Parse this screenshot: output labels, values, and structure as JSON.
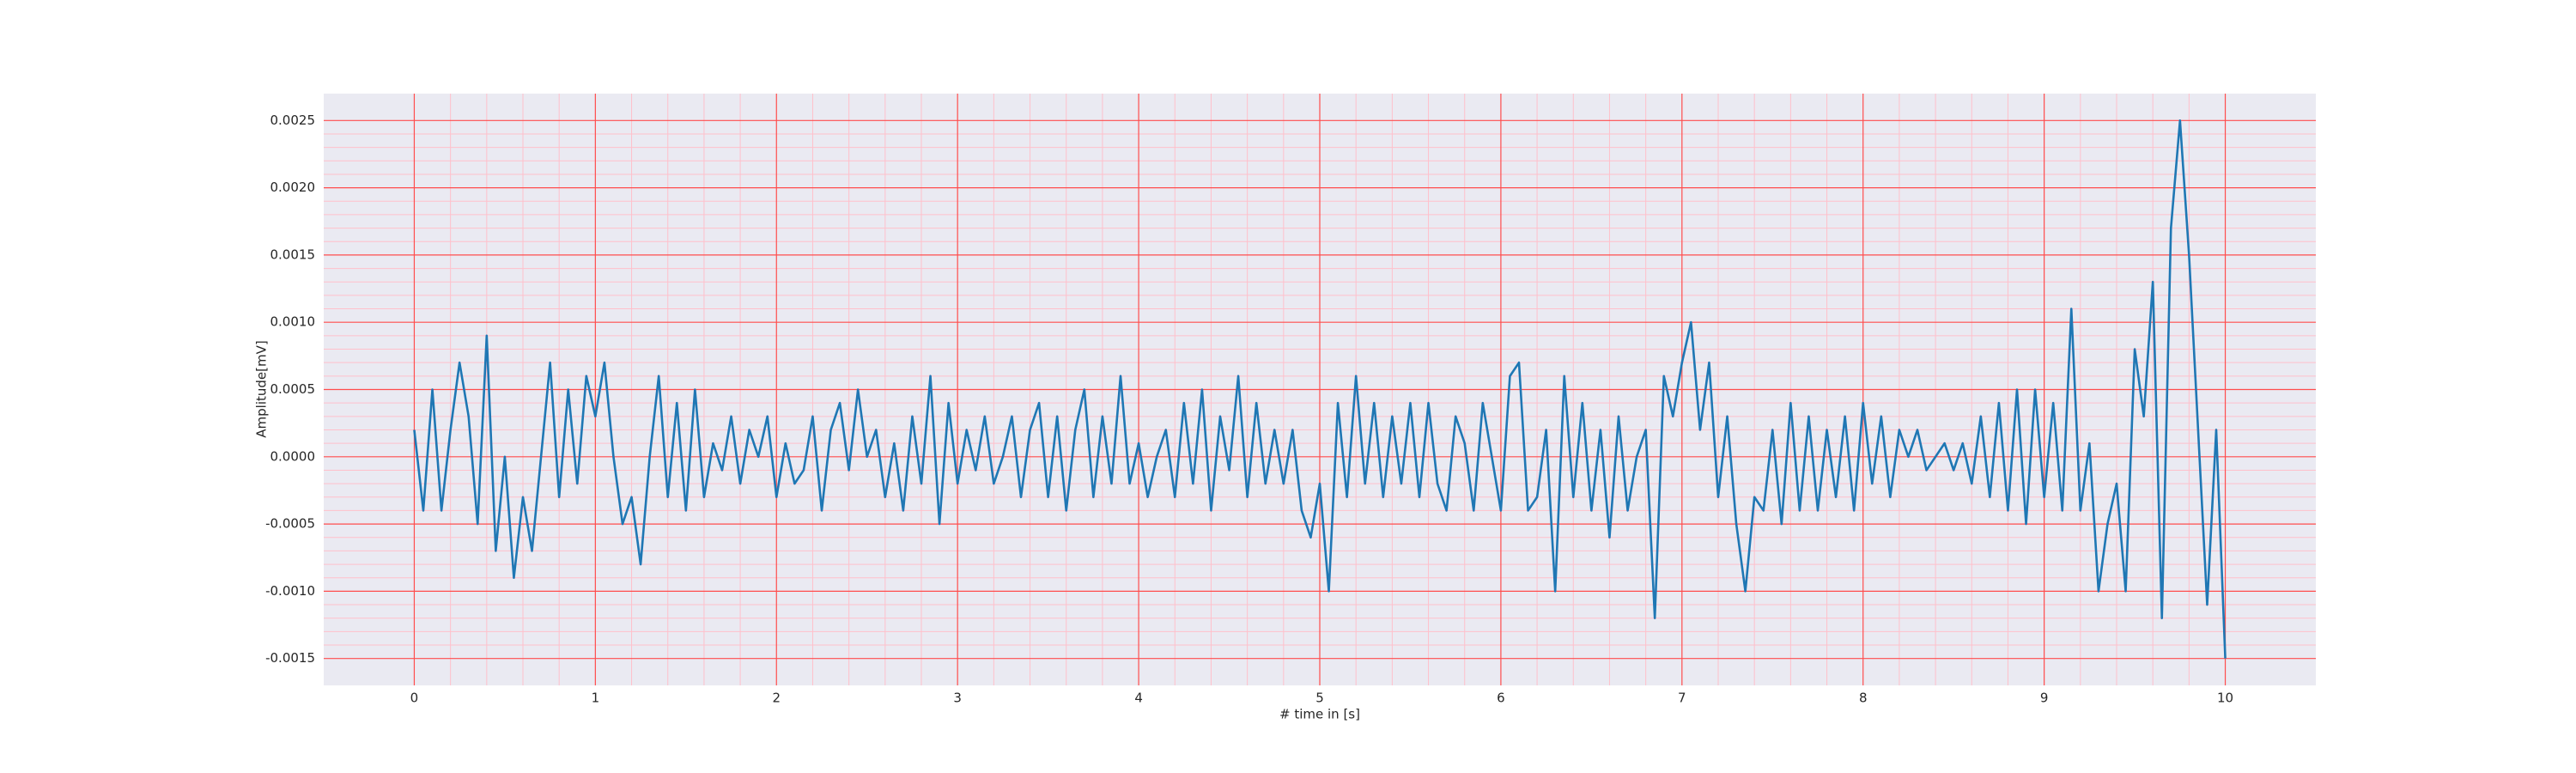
{
  "chart_data": {
    "type": "line",
    "xlabel": "# time in [s]",
    "ylabel": "Amplitude[mV]",
    "color": "#1f77b4",
    "grid": true,
    "major_grid_color": "#ff4d4d",
    "minor_grid_color": "#ffc0cb",
    "background": "#eaeaf2",
    "xlim": [
      -0.5,
      10.5
    ],
    "ylim": [
      -0.0017,
      0.0027
    ],
    "xticks": [
      0,
      1,
      2,
      3,
      4,
      5,
      6,
      7,
      8,
      9,
      10
    ],
    "yticks": [
      -0.0015,
      {
        "value": -0.001,
        "label": "-0.0010"
      },
      -0.0005,
      {
        "value": 0,
        "label": "0.0000"
      },
      0.0005,
      {
        "value": 0.001,
        "label": "0.0010"
      },
      0.0015,
      {
        "value": 0.002,
        "label": "0.0020"
      },
      0.0025
    ],
    "x": [
      0,
      0.05,
      0.1,
      0.15,
      0.2,
      0.25,
      0.3,
      0.35,
      0.4,
      0.45,
      0.5,
      0.55,
      0.6,
      0.65,
      0.7,
      0.75,
      0.8,
      0.85,
      0.9,
      0.95,
      1,
      1.05,
      1.1,
      1.15,
      1.2,
      1.25,
      1.3,
      1.35,
      1.4,
      1.45,
      1.5,
      1.55,
      1.6,
      1.65,
      1.7,
      1.75,
      1.8,
      1.85,
      1.9,
      1.95,
      2,
      2.05,
      2.1,
      2.15,
      2.2,
      2.25,
      2.3,
      2.35,
      2.4,
      2.45,
      2.5,
      2.55,
      2.6,
      2.65,
      2.7,
      2.75,
      2.8,
      2.85,
      2.9,
      2.95,
      3,
      3.05,
      3.1,
      3.15,
      3.2,
      3.25,
      3.3,
      3.35,
      3.4,
      3.45,
      3.5,
      3.55,
      3.6,
      3.65,
      3.7,
      3.75,
      3.8,
      3.85,
      3.9,
      3.95,
      4,
      4.05,
      4.1,
      4.15,
      4.2,
      4.25,
      4.3,
      4.35,
      4.4,
      4.45,
      4.5,
      4.55,
      4.6,
      4.65,
      4.7,
      4.75,
      4.8,
      4.85,
      4.9,
      4.95,
      5,
      5.05,
      5.1,
      5.15,
      5.2,
      5.25,
      5.3,
      5.35,
      5.4,
      5.45,
      5.5,
      5.55,
      5.6,
      5.65,
      5.7,
      5.75,
      5.8,
      5.85,
      5.9,
      5.95,
      6,
      6.05,
      6.1,
      6.15,
      6.2,
      6.25,
      6.3,
      6.35,
      6.4,
      6.45,
      6.5,
      6.55,
      6.6,
      6.65,
      6.7,
      6.75,
      6.8,
      6.85,
      6.9,
      6.95,
      7,
      7.05,
      7.1,
      7.15,
      7.2,
      7.25,
      7.3,
      7.35,
      7.4,
      7.45,
      7.5,
      7.55,
      7.6,
      7.65,
      7.7,
      7.75,
      7.8,
      7.85,
      7.9,
      7.95,
      8,
      8.05,
      8.1,
      8.15,
      8.2,
      8.25,
      8.3,
      8.35,
      8.4,
      8.45,
      8.5,
      8.55,
      8.6,
      8.65,
      8.7,
      8.75,
      8.8,
      8.85,
      8.9,
      8.95,
      9,
      9.05,
      9.1,
      9.15,
      9.2,
      9.25,
      9.3,
      9.35,
      9.4,
      9.45,
      9.5,
      9.55,
      9.6,
      9.65,
      9.7,
      9.75,
      9.8,
      9.85,
      9.9,
      9.95,
      10
    ],
    "values": [
      0.0002,
      -0.0004,
      0.0005,
      -0.0004,
      0.0002,
      0.0007,
      0.0003,
      -0.0005,
      0.0009,
      -0.0007,
      0,
      -0.0009,
      -0.0003,
      -0.0007,
      0,
      0.0007,
      -0.0003,
      0.0005,
      -0.0002,
      0.0006,
      0.0003,
      0.0007,
      0,
      -0.0005,
      -0.0003,
      -0.0008,
      0,
      0.0006,
      -0.0003,
      0.0004,
      -0.0004,
      0.0005,
      -0.0003,
      0.0001,
      -0.0001,
      0.0003,
      -0.0002,
      0.0002,
      0,
      0.0003,
      -0.0003,
      0.0001,
      -0.0002,
      -0.0001,
      0.0003,
      -0.0004,
      0.0002,
      0.0004,
      -0.0001,
      0.0005,
      0,
      0.0002,
      -0.0003,
      0.0001,
      -0.0004,
      0.0003,
      -0.0002,
      0.0006,
      -0.0005,
      0.0004,
      -0.0002,
      0.0002,
      -0.0001,
      0.0003,
      -0.0002,
      0,
      0.0003,
      -0.0003,
      0.0002,
      0.0004,
      -0.0003,
      0.0003,
      -0.0004,
      0.0002,
      0.0005,
      -0.0003,
      0.0003,
      -0.0002,
      0.0006,
      -0.0002,
      0.0001,
      -0.0003,
      0,
      0.0002,
      -0.0003,
      0.0004,
      -0.0002,
      0.0005,
      -0.0004,
      0.0003,
      -0.0001,
      0.0006,
      -0.0003,
      0.0004,
      -0.0002,
      0.0002,
      -0.0002,
      0.0002,
      -0.0004,
      -0.0006,
      -0.0002,
      -0.001,
      0.0004,
      -0.0003,
      0.0006,
      -0.0002,
      0.0004,
      -0.0003,
      0.0003,
      -0.0002,
      0.0004,
      -0.0003,
      0.0004,
      -0.0002,
      -0.0004,
      0.0003,
      0.0001,
      -0.0004,
      0.0004,
      0,
      -0.0004,
      0.0006,
      0.0007,
      -0.0004,
      -0.0003,
      0.0002,
      -0.001,
      0.0006,
      -0.0003,
      0.0004,
      -0.0004,
      0.0002,
      -0.0006,
      0.0003,
      -0.0004,
      0,
      0.0002,
      -0.0012,
      0.0006,
      0.0003,
      0.0007,
      0.001,
      0.0002,
      0.0007,
      -0.0003,
      0.0003,
      -0.0005,
      -0.001,
      -0.0003,
      -0.0004,
      0.0002,
      -0.0005,
      0.0004,
      -0.0004,
      0.0003,
      -0.0004,
      0.0002,
      -0.0003,
      0.0003,
      -0.0004,
      0.0004,
      -0.0002,
      0.0003,
      -0.0003,
      0.0002,
      0,
      0.0002,
      -0.0001,
      0,
      0.0001,
      -0.0001,
      0.0001,
      -0.0002,
      0.0003,
      -0.0003,
      0.0004,
      -0.0004,
      0.0005,
      -0.0005,
      0.0005,
      -0.0003,
      0.0004,
      -0.0004,
      0.0011,
      -0.0004,
      0.0001,
      -0.001,
      -0.0005,
      -0.0002,
      -0.001,
      0.0008,
      0.0003,
      0.0013,
      -0.0012,
      0.0017,
      0.0025,
      0.0015,
      0.0002,
      -0.0011,
      0.0002,
      -0.0015
    ]
  }
}
